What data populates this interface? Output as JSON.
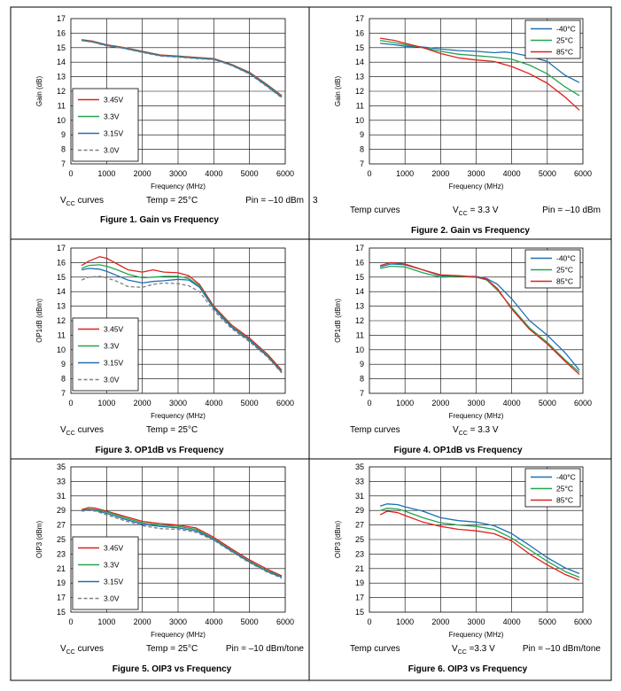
{
  "colors": {
    "red": "#e0201c",
    "green": "#22a64e",
    "blue": "#1f6fb5",
    "gray": "#7f7f7f",
    "grid": "#000000"
  },
  "chart_data": [
    {
      "id": "fig1",
      "type": "line",
      "title": "Figure 1.  Gain vs Frequency",
      "xlabel": "Frequency (MHz)",
      "ylabel": "Gain (dB)",
      "xlim": [
        0,
        6000
      ],
      "ylim": [
        7,
        17
      ],
      "xticks": [
        "0",
        "1000",
        "2000",
        "3000",
        "4000",
        "5000",
        "6000"
      ],
      "yticks": [
        "7",
        "8",
        "9",
        "10",
        "11",
        "12",
        "13",
        "14",
        "15",
        "16",
        "17"
      ],
      "legend_position": "bottom-left",
      "footer": {
        "left_main": "V",
        "left_sub": "CC",
        "left_rest": " curves",
        "middle": "Temp = 25°C",
        "right": "Pin = –10 dBm"
      },
      "side_note": "3",
      "series": [
        {
          "name": "3.45V",
          "color": "red",
          "dash": false,
          "x": [
            300,
            600,
            1000,
            1500,
            2000,
            2500,
            3000,
            3500,
            4000,
            4500,
            5000,
            5500,
            5900
          ],
          "y": [
            15.55,
            15.45,
            15.2,
            15.0,
            14.75,
            14.5,
            14.42,
            14.33,
            14.25,
            13.85,
            13.3,
            12.45,
            11.7
          ]
        },
        {
          "name": "3.3V",
          "color": "green",
          "dash": false,
          "x": [
            300,
            600,
            1000,
            1500,
            2000,
            2500,
            3000,
            3500,
            4000,
            4500,
            5000,
            5500,
            5900
          ],
          "y": [
            15.52,
            15.42,
            15.17,
            14.98,
            14.72,
            14.47,
            14.4,
            14.3,
            14.22,
            13.82,
            13.25,
            12.4,
            11.65
          ]
        },
        {
          "name": "3.15V",
          "color": "blue",
          "dash": false,
          "x": [
            300,
            600,
            1000,
            1500,
            2000,
            2500,
            3000,
            3500,
            4000,
            4500,
            5000,
            5500,
            5900
          ],
          "y": [
            15.5,
            15.4,
            15.15,
            14.96,
            14.7,
            14.45,
            14.38,
            14.28,
            14.2,
            13.8,
            13.22,
            12.35,
            11.6
          ]
        },
        {
          "name": "3.0V",
          "color": "gray",
          "dash": true,
          "x": [
            300,
            600,
            1000,
            1500,
            2000,
            2500,
            3000,
            3500,
            4000,
            4500,
            5000,
            5500,
            5900
          ],
          "y": [
            15.48,
            15.38,
            15.12,
            14.93,
            14.67,
            14.42,
            14.35,
            14.25,
            14.17,
            13.77,
            13.18,
            12.3,
            11.55
          ]
        }
      ]
    },
    {
      "id": "fig2",
      "type": "line",
      "title": "Figure 2.  Gain vs Frequency",
      "xlabel": "Frequency (MHz)",
      "ylabel": "Gain (dB)",
      "xlim": [
        0,
        6000
      ],
      "ylim": [
        7,
        17
      ],
      "xticks": [
        "0",
        "1000",
        "2000",
        "3000",
        "4000",
        "5000",
        "6000"
      ],
      "yticks": [
        "7",
        "8",
        "9",
        "10",
        "11",
        "12",
        "13",
        "14",
        "15",
        "16",
        "17"
      ],
      "legend_position": "top-right",
      "footer": {
        "left_main": "Temp curves",
        "middle_main": "V",
        "middle_sub": "CC",
        "middle_rest": " = 3.3 V",
        "right": "Pin = –10 dBm"
      },
      "series": [
        {
          "name": "-40°C",
          "color": "blue",
          "dash": false,
          "x": [
            300,
            700,
            1000,
            1500,
            2000,
            2500,
            3000,
            3500,
            3800,
            4000,
            4500,
            5000,
            5500,
            5900
          ],
          "y": [
            15.3,
            15.2,
            15.1,
            15.05,
            14.9,
            14.8,
            14.75,
            14.65,
            14.7,
            14.65,
            14.4,
            14.05,
            13.1,
            12.6
          ]
        },
        {
          "name": "25°C",
          "color": "green",
          "dash": false,
          "x": [
            300,
            700,
            1000,
            1500,
            2000,
            2500,
            3000,
            3500,
            4000,
            4500,
            5000,
            5500,
            5900
          ],
          "y": [
            15.5,
            15.35,
            15.2,
            15.0,
            14.75,
            14.55,
            14.45,
            14.35,
            14.2,
            13.8,
            13.2,
            12.3,
            11.7
          ]
        },
        {
          "name": "85°C",
          "color": "red",
          "dash": false,
          "x": [
            300,
            700,
            1000,
            1500,
            2000,
            2500,
            3000,
            3500,
            4000,
            4500,
            5000,
            5500,
            5900
          ],
          "y": [
            15.65,
            15.5,
            15.3,
            15.0,
            14.6,
            14.3,
            14.15,
            14.05,
            13.7,
            13.2,
            12.55,
            11.6,
            10.7
          ]
        }
      ]
    },
    {
      "id": "fig3",
      "type": "line",
      "title": "Figure 3.  OP1dB vs Frequency",
      "xlabel": "Frequency (MHz)",
      "ylabel": "OP1dB (dBm)",
      "xlim": [
        0,
        6000
      ],
      "ylim": [
        7,
        17
      ],
      "xticks": [
        "0",
        "1000",
        "2000",
        "3000",
        "4000",
        "5000",
        "6000"
      ],
      "yticks": [
        "7",
        "8",
        "9",
        "10",
        "11",
        "12",
        "13",
        "14",
        "15",
        "16",
        "17"
      ],
      "legend_position": "bottom-left",
      "footer": {
        "left_main": "V",
        "left_sub": "CC",
        "left_rest": " curves",
        "middle": "Temp = 25°C",
        "right": ""
      },
      "series": [
        {
          "name": "3.45V",
          "color": "red",
          "dash": false,
          "x": [
            300,
            500,
            800,
            1000,
            1300,
            1600,
            2000,
            2300,
            2600,
            3000,
            3300,
            3600,
            4000,
            4500,
            5000,
            5500,
            5900
          ],
          "y": [
            15.8,
            16.1,
            16.4,
            16.3,
            15.9,
            15.5,
            15.35,
            15.5,
            15.35,
            15.3,
            15.1,
            14.5,
            13.0,
            11.7,
            10.8,
            9.7,
            8.6
          ]
        },
        {
          "name": "3.3V",
          "color": "green",
          "dash": false,
          "x": [
            300,
            500,
            800,
            1000,
            1300,
            1600,
            2000,
            2300,
            2600,
            3000,
            3300,
            3600,
            4000,
            4500,
            5000,
            5500,
            5900
          ],
          "y": [
            15.6,
            15.8,
            15.85,
            15.75,
            15.5,
            15.2,
            14.95,
            15.0,
            15.05,
            15.05,
            14.9,
            14.4,
            12.9,
            11.6,
            10.7,
            9.6,
            8.5
          ]
        },
        {
          "name": "3.15V",
          "color": "blue",
          "dash": false,
          "x": [
            300,
            500,
            800,
            1000,
            1300,
            1600,
            2000,
            2300,
            2600,
            3000,
            3300,
            3600,
            4000,
            4500,
            5000,
            5500,
            5900
          ],
          "y": [
            15.5,
            15.6,
            15.55,
            15.4,
            15.1,
            14.8,
            14.6,
            14.7,
            14.75,
            14.85,
            14.8,
            14.3,
            12.85,
            11.55,
            10.65,
            9.55,
            8.45
          ]
        },
        {
          "name": "3.0V",
          "color": "gray",
          "dash": true,
          "x": [
            300,
            500,
            800,
            1000,
            1300,
            1600,
            2000,
            2300,
            2600,
            3000,
            3300,
            3600,
            4000,
            4500,
            5000,
            5500,
            5900
          ],
          "y": [
            14.8,
            15.0,
            15.05,
            14.95,
            14.7,
            14.35,
            14.3,
            14.5,
            14.6,
            14.55,
            14.4,
            14.0,
            12.7,
            11.45,
            10.55,
            9.5,
            8.4
          ]
        }
      ]
    },
    {
      "id": "fig4",
      "type": "line",
      "title": "Figure 4.  OP1dB vs Frequency",
      "xlabel": "Frequency (MHz)",
      "ylabel": "OP1dB (dBm)",
      "xlim": [
        0,
        6000
      ],
      "ylim": [
        7,
        17
      ],
      "xticks": [
        "0",
        "1000",
        "2000",
        "3000",
        "4000",
        "5000",
        "6000"
      ],
      "yticks": [
        "7",
        "8",
        "9",
        "10",
        "11",
        "12",
        "13",
        "14",
        "15",
        "16",
        "17"
      ],
      "legend_position": "top-right",
      "footer": {
        "left_main": "Temp curves",
        "middle_main": "V",
        "middle_sub": "CC",
        "middle_rest": " = 3.3 V",
        "right": ""
      },
      "series": [
        {
          "name": "-40°C",
          "color": "blue",
          "dash": false,
          "x": [
            300,
            600,
            1000,
            1500,
            2000,
            2500,
            3000,
            3300,
            3600,
            4000,
            4500,
            5000,
            5500,
            5900
          ],
          "y": [
            15.7,
            15.9,
            15.85,
            15.5,
            15.1,
            15.05,
            15.05,
            14.9,
            14.5,
            13.5,
            12.0,
            11.0,
            9.8,
            8.6
          ]
        },
        {
          "name": "25°C",
          "color": "green",
          "dash": false,
          "x": [
            300,
            600,
            1000,
            1500,
            2000,
            2500,
            3000,
            3300,
            3600,
            4000,
            4500,
            5000,
            5500,
            5900
          ],
          "y": [
            15.6,
            15.75,
            15.7,
            15.3,
            15.0,
            15.05,
            15.0,
            14.8,
            14.1,
            12.9,
            11.5,
            10.5,
            9.3,
            8.45
          ]
        },
        {
          "name": "85°C",
          "color": "red",
          "dash": false,
          "x": [
            300,
            600,
            1000,
            1500,
            2000,
            2500,
            3000,
            3300,
            3600,
            4000,
            4500,
            5000,
            5500,
            5900
          ],
          "y": [
            15.8,
            16.0,
            15.9,
            15.5,
            15.15,
            15.1,
            15.0,
            14.85,
            14.2,
            12.8,
            11.4,
            10.4,
            9.2,
            8.3
          ]
        }
      ]
    },
    {
      "id": "fig5",
      "type": "line",
      "title": "Figure 5. OIP3 vs Frequency",
      "xlabel": "Frequency (MHz)",
      "ylabel": "OIP3 (dBm)",
      "xlim": [
        0,
        6000
      ],
      "ylim": [
        15,
        35
      ],
      "xticks": [
        "0",
        "1000",
        "2000",
        "3000",
        "4000",
        "5000",
        "6000"
      ],
      "yticks": [
        "15",
        "17",
        "19",
        "21",
        "23",
        "25",
        "27",
        "29",
        "31",
        "33",
        "35"
      ],
      "legend_position": "bottom-left",
      "footer": {
        "left_main": "V",
        "left_sub": "CC",
        "left_rest": " curves",
        "middle": "Temp = 25°C",
        "right": "Pin = –10 dBm/tone"
      },
      "series": [
        {
          "name": "3.45V",
          "color": "red",
          "dash": false,
          "x": [
            300,
            500,
            700,
            1000,
            1500,
            2000,
            2500,
            3000,
            3500,
            4000,
            4500,
            5000,
            5500,
            5900
          ],
          "y": [
            29.1,
            29.4,
            29.3,
            28.9,
            28.2,
            27.5,
            27.2,
            27.0,
            26.6,
            25.3,
            23.7,
            22.2,
            20.9,
            20.0
          ]
        },
        {
          "name": "3.3V",
          "color": "green",
          "dash": false,
          "x": [
            300,
            500,
            700,
            1000,
            1500,
            2000,
            2500,
            3000,
            3500,
            4000,
            4500,
            5000,
            5500,
            5900
          ],
          "y": [
            29.0,
            29.2,
            29.1,
            28.8,
            28.0,
            27.3,
            27.0,
            26.8,
            26.4,
            25.1,
            23.5,
            22.0,
            20.7,
            19.9
          ]
        },
        {
          "name": "3.15V",
          "color": "blue",
          "dash": false,
          "x": [
            300,
            500,
            700,
            1000,
            1500,
            2000,
            2500,
            3000,
            3500,
            4000,
            4500,
            5000,
            5500,
            5900
          ],
          "y": [
            29.0,
            29.1,
            29.0,
            28.6,
            27.8,
            27.1,
            26.8,
            26.6,
            26.2,
            25.0,
            23.4,
            21.9,
            20.6,
            19.8
          ]
        },
        {
          "name": "3.0V",
          "color": "gray",
          "dash": true,
          "x": [
            300,
            500,
            700,
            1000,
            1500,
            2000,
            2500,
            3000,
            3500,
            4000,
            4500,
            5000,
            5500,
            5900
          ],
          "y": [
            28.9,
            29.0,
            28.9,
            28.4,
            27.6,
            26.9,
            26.5,
            26.4,
            26.0,
            24.9,
            23.3,
            21.8,
            20.5,
            19.7
          ]
        }
      ]
    },
    {
      "id": "fig6",
      "type": "line",
      "title": "Figure 6.  OIP3 vs Frequency",
      "xlabel": "Frequency (MHz)",
      "ylabel": "OIP3 (dBm)",
      "xlim": [
        0,
        6000
      ],
      "ylim": [
        15,
        35
      ],
      "xticks": [
        "0",
        "1000",
        "2000",
        "3000",
        "4000",
        "5000",
        "6000"
      ],
      "yticks": [
        "15",
        "17",
        "19",
        "21",
        "23",
        "25",
        "27",
        "29",
        "31",
        "33",
        "35"
      ],
      "legend_position": "top-right",
      "footer": {
        "left_main": "Temp curves",
        "middle_main": "V",
        "middle_sub": "CC",
        "middle_rest": " =3.3 V",
        "right": "Pin = –10 dBm/tone"
      },
      "series": [
        {
          "name": "-40°C",
          "color": "blue",
          "dash": false,
          "x": [
            300,
            500,
            800,
            1000,
            1500,
            2000,
            2500,
            3000,
            3500,
            4000,
            4500,
            5000,
            5500,
            5900
          ],
          "y": [
            29.6,
            29.9,
            29.8,
            29.5,
            28.9,
            28.0,
            27.6,
            27.4,
            26.9,
            25.8,
            24.2,
            22.5,
            21.1,
            20.3
          ]
        },
        {
          "name": "25°C",
          "color": "green",
          "dash": false,
          "x": [
            300,
            500,
            800,
            1000,
            1500,
            2000,
            2500,
            3000,
            3500,
            4000,
            4500,
            5000,
            5500,
            5900
          ],
          "y": [
            29.0,
            29.3,
            29.2,
            28.9,
            28.0,
            27.3,
            27.0,
            26.8,
            26.4,
            25.2,
            23.6,
            22.0,
            20.6,
            19.8
          ]
        },
        {
          "name": "85°C",
          "color": "red",
          "dash": false,
          "x": [
            300,
            500,
            800,
            1000,
            1500,
            2000,
            2500,
            3000,
            3500,
            4000,
            4500,
            5000,
            5500,
            5900
          ],
          "y": [
            28.4,
            28.9,
            28.7,
            28.3,
            27.4,
            26.8,
            26.4,
            26.2,
            25.8,
            24.8,
            23.0,
            21.5,
            20.2,
            19.4
          ]
        }
      ]
    }
  ]
}
